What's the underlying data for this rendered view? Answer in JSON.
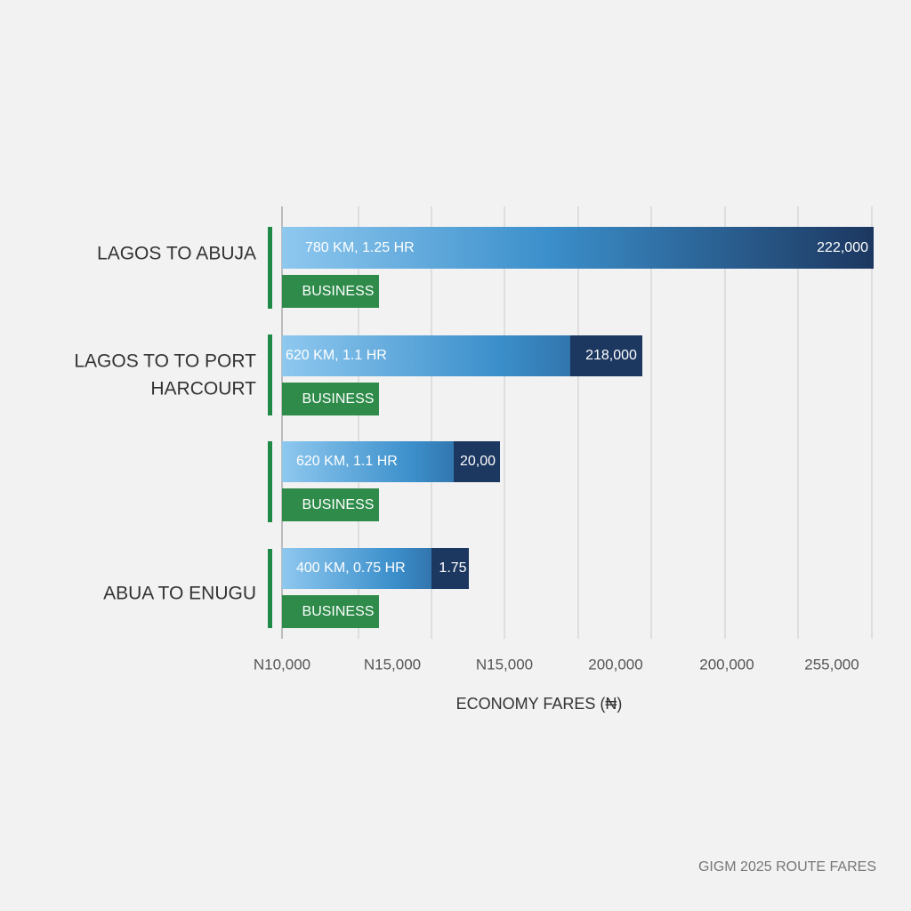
{
  "rows": [
    {
      "label_lines": [
        "LAGOS TO ABUJA"
      ],
      "detail": "780 KM, 1.25 HR",
      "fare": "222,000",
      "tag": "BUSINESS"
    },
    {
      "label_lines": [
        "LAGOS TO TO PORT",
        "HARCOURT"
      ],
      "detail": "620 KM, 1.1 HR",
      "fare": "218,000",
      "tag": "BUSINESS"
    },
    {
      "detail": "620 KM, 1.1 HR",
      "fare": "20,00",
      "tag": "BUSINESS"
    },
    {
      "label_lines": [
        "ABUA TO ENUGU"
      ],
      "detail": "400 KM, 0.75 HR",
      "fare": "1.75",
      "tag": "BUSINESS"
    }
  ],
  "x_axis": {
    "tick_labels": [
      "N10,000",
      "N15,000",
      "N15,000",
      "200,000",
      "200,000",
      "255,000"
    ],
    "title": "ECONOMY FARES (₦)"
  },
  "footer": "GIGM 2025 ROUTE FARES"
}
